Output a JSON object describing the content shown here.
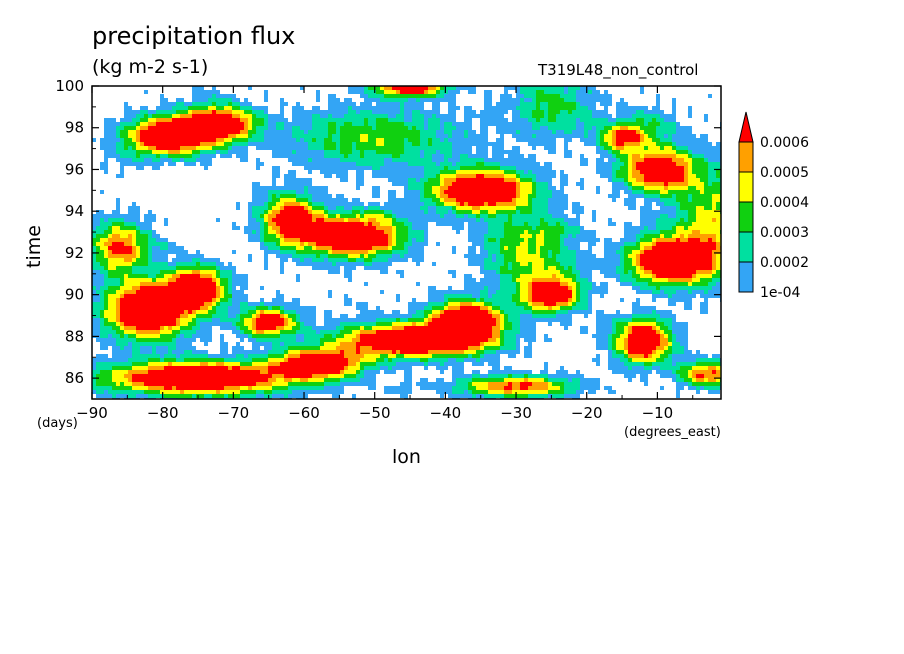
{
  "title": "precipitation flux",
  "units": "(kg m-2 s-1)",
  "run_label": "T319L48_non_control",
  "chart_data": {
    "type": "heatmap",
    "xlabel": "lon",
    "ylabel": "time",
    "x_units": "(degrees_east)",
    "y_units": "(days)",
    "xlim": [
      -90,
      -1
    ],
    "ylim": [
      85,
      100
    ],
    "x_ticks": [
      -90,
      -80,
      -70,
      -60,
      -50,
      -40,
      -30,
      -20,
      -10
    ],
    "x_tick_labels": [
      "-90",
      "-80",
      "-70",
      "-60",
      "-50",
      "-40",
      "-30",
      "-20",
      "-10"
    ],
    "y_ticks": [
      86,
      88,
      90,
      92,
      94,
      96,
      98,
      100
    ],
    "y_tick_labels": [
      "86",
      "88",
      "90",
      "92",
      "94",
      "96",
      "98",
      "100"
    ],
    "colorbar": {
      "levels": [
        0.0001,
        0.0002,
        0.0003,
        0.0004,
        0.0005,
        0.0006
      ],
      "labels": [
        "1e-04",
        "0.0002",
        "0.0003",
        "0.0004",
        "0.0005",
        "0.0006"
      ],
      "colors": [
        "#33a5f5",
        "#00e0a0",
        "#10d010",
        "#ffff00",
        "#ffa000",
        "#ff0000"
      ],
      "extend": "max"
    },
    "fields": [
      {
        "lon": -79,
        "time": 97.6,
        "rlon": 6,
        "rtime": 0.9,
        "peak": 0.0009
      },
      {
        "lon": -72,
        "time": 98.2,
        "rlon": 5,
        "rtime": 0.8,
        "peak": 0.0008
      },
      {
        "lon": -45,
        "time": 100,
        "rlon": 5,
        "rtime": 0.5,
        "peak": 0.0008
      },
      {
        "lon": -53,
        "time": 92.8,
        "rlon": 7,
        "rtime": 1.0,
        "peak": 0.0009
      },
      {
        "lon": -62,
        "time": 93.6,
        "rlon": 4,
        "rtime": 1.2,
        "peak": 0.0007
      },
      {
        "lon": -35,
        "time": 95.0,
        "rlon": 7,
        "rtime": 1.0,
        "peak": 0.0009
      },
      {
        "lon": -10,
        "time": 96.0,
        "rlon": 5,
        "rtime": 1.0,
        "peak": 0.0008
      },
      {
        "lon": -15,
        "time": 97.5,
        "rlon": 3,
        "rtime": 0.6,
        "peak": 0.0006
      },
      {
        "lon": -82,
        "time": 89.3,
        "rlon": 6,
        "rtime": 1.4,
        "peak": 0.0009
      },
      {
        "lon": -75,
        "time": 90.3,
        "rlon": 4,
        "rtime": 1.0,
        "peak": 0.0008
      },
      {
        "lon": -65,
        "time": 88.7,
        "rlon": 4,
        "rtime": 0.7,
        "peak": 0.0007
      },
      {
        "lon": -45,
        "time": 87.8,
        "rlon": 10,
        "rtime": 0.8,
        "peak": 0.0009
      },
      {
        "lon": -37,
        "time": 88.7,
        "rlon": 5,
        "rtime": 1.0,
        "peak": 0.0009
      },
      {
        "lon": -25,
        "time": 90.0,
        "rlon": 4,
        "rtime": 0.8,
        "peak": 0.0008
      },
      {
        "lon": -8,
        "time": 91.6,
        "rlon": 6,
        "rtime": 1.1,
        "peak": 0.0009
      },
      {
        "lon": -12,
        "time": 87.7,
        "rlon": 4,
        "rtime": 1.0,
        "peak": 0.0008
      },
      {
        "lon": -75,
        "time": 86.0,
        "rlon": 13,
        "rtime": 0.8,
        "peak": 0.0009
      },
      {
        "lon": -58,
        "time": 86.7,
        "rlon": 6,
        "rtime": 0.7,
        "peak": 0.0008
      },
      {
        "lon": -30,
        "time": 85.6,
        "rlon": 8,
        "rtime": 0.5,
        "peak": 0.0006
      },
      {
        "lon": -3,
        "time": 86.2,
        "rlon": 4,
        "rtime": 0.6,
        "peak": 0.0006
      },
      {
        "lon": -50,
        "time": 97.5,
        "rlon": 12,
        "rtime": 1.4,
        "peak": 0.00035
      },
      {
        "lon": -28,
        "time": 92.0,
        "rlon": 6,
        "rtime": 1.8,
        "peak": 0.0004
      },
      {
        "lon": -2,
        "time": 93.5,
        "rlon": 6,
        "rtime": 2.5,
        "peak": 0.0004
      },
      {
        "lon": -86,
        "time": 92.3,
        "rlon": 4,
        "rtime": 1.2,
        "peak": 0.0006
      },
      {
        "lon": -25,
        "time": 99.0,
        "rlon": 6,
        "rtime": 1.5,
        "peak": 0.0003
      }
    ]
  }
}
